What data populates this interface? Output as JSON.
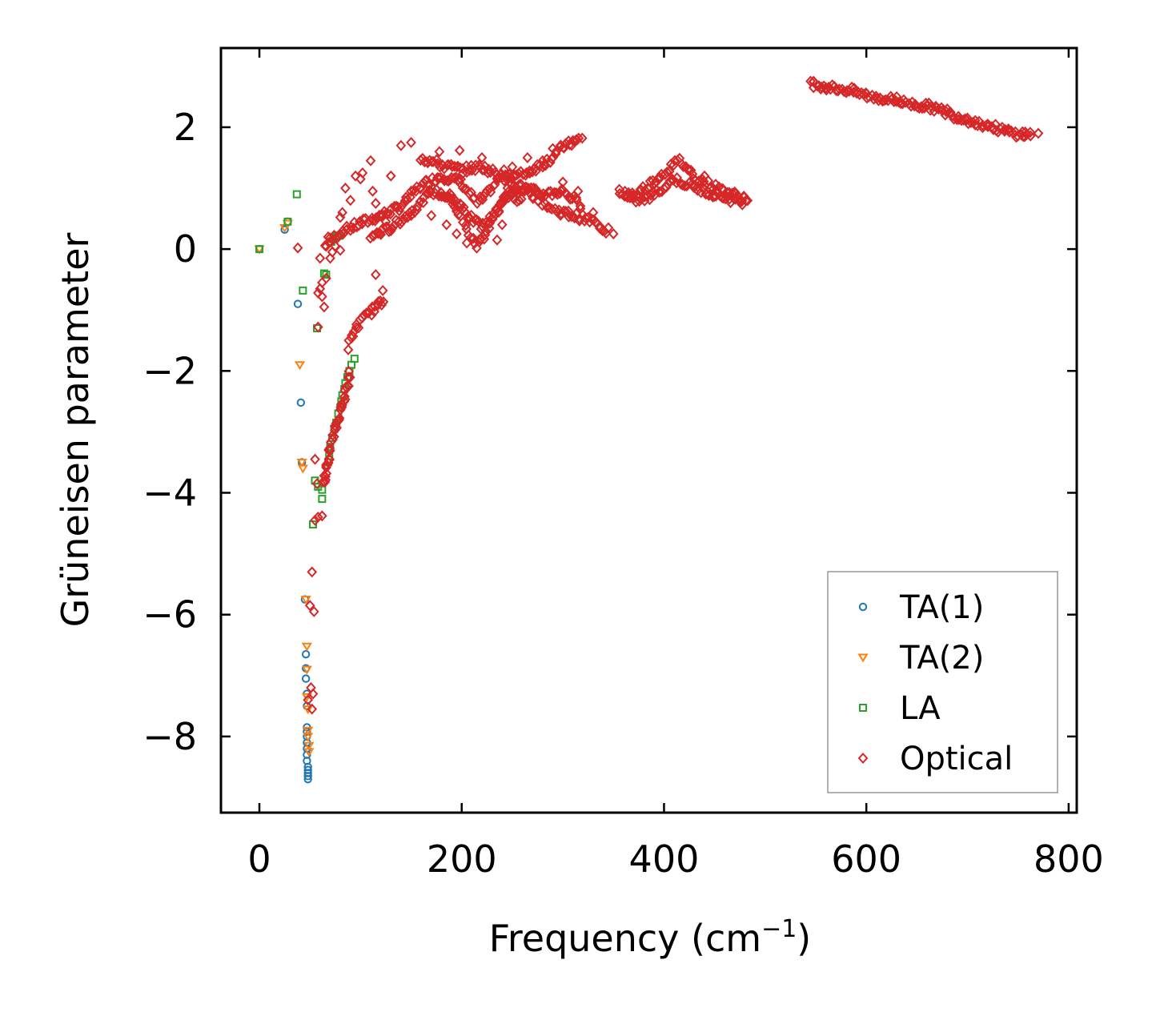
{
  "chart_data": {
    "type": "scatter",
    "title": "",
    "xlabel": "Frequency (cm",
    "xlabel_sup": "−1",
    "xlabel_end": ")",
    "ylabel": "Grüneisen parameter",
    "xlim": [
      -38,
      808
    ],
    "ylim": [
      -9.25,
      3.3
    ],
    "xticks": [
      0,
      200,
      400,
      600,
      800
    ],
    "xtick_labels": [
      "0",
      "200",
      "400",
      "600",
      "800"
    ],
    "yticks": [
      2,
      0,
      -2,
      -4,
      -6,
      -8
    ],
    "ytick_labels": [
      "2",
      "0",
      "−2",
      "−4",
      "−6",
      "−8"
    ],
    "grid": false,
    "legend_position": "bottom-right",
    "series": [
      {
        "name": "TA(1)",
        "marker": "circle",
        "color": "#1f77b4",
        "points": [
          [
            0,
            0
          ],
          [
            25,
            0.32
          ],
          [
            28,
            0.45
          ],
          [
            38,
            -0.9
          ],
          [
            41,
            -2.52
          ],
          [
            42,
            -3.5
          ],
          [
            45,
            -5.75
          ],
          [
            46,
            -6.65
          ],
          [
            46,
            -6.88
          ],
          [
            46,
            -7.05
          ],
          [
            47,
            -7.3
          ],
          [
            47,
            -7.5
          ],
          [
            47,
            -7.85
          ],
          [
            47,
            -7.92
          ],
          [
            47,
            -8.0
          ],
          [
            47,
            -8.1
          ],
          [
            47,
            -8.2
          ],
          [
            47,
            -8.3
          ],
          [
            47,
            -8.4
          ],
          [
            48,
            -8.5
          ],
          [
            48,
            -8.55
          ],
          [
            48,
            -8.6
          ],
          [
            48,
            -8.65
          ],
          [
            48,
            -8.7
          ]
        ]
      },
      {
        "name": "TA(2)",
        "marker": "triangle-down",
        "color": "#ff7f0e",
        "points": [
          [
            0,
            0
          ],
          [
            25,
            0.35
          ],
          [
            28,
            0.42
          ],
          [
            40,
            -1.9
          ],
          [
            42,
            -3.5
          ],
          [
            43,
            -3.6
          ],
          [
            46,
            -5.75
          ],
          [
            47,
            -6.52
          ],
          [
            47,
            -6.9
          ],
          [
            47,
            -7.35
          ],
          [
            48,
            -7.55
          ],
          [
            48,
            -7.9
          ],
          [
            48,
            -8.0
          ],
          [
            49,
            -8.15
          ],
          [
            49,
            -8.25
          ]
        ]
      },
      {
        "name": "LA",
        "marker": "square",
        "color": "#2ca02c",
        "points": [
          [
            0,
            0
          ],
          [
            28,
            0.45
          ],
          [
            37,
            0.9
          ],
          [
            43,
            -0.68
          ],
          [
            53,
            -4.52
          ],
          [
            55,
            -3.8
          ],
          [
            57,
            -1.3
          ],
          [
            58,
            -3.9
          ],
          [
            62,
            -4.1
          ],
          [
            62,
            -3.95
          ],
          [
            64,
            -0.4
          ],
          [
            66,
            -0.42
          ],
          [
            68,
            -3.5
          ],
          [
            69,
            -3.35
          ],
          [
            70,
            -3.25
          ],
          [
            71,
            0.12
          ],
          [
            72,
            -3.1
          ],
          [
            73,
            0.18
          ],
          [
            74,
            -2.95
          ],
          [
            75,
            0.2
          ],
          [
            76,
            -2.85
          ],
          [
            77,
            0.22
          ],
          [
            78,
            -2.7
          ],
          [
            79,
            0.22
          ],
          [
            80,
            -2.6
          ],
          [
            81,
            -2.5
          ],
          [
            82,
            -2.4
          ],
          [
            84,
            -2.3
          ],
          [
            85,
            -2.2
          ],
          [
            87,
            -2.1
          ],
          [
            89,
            -2.0
          ],
          [
            91,
            -1.9
          ],
          [
            94,
            -1.8
          ]
        ]
      },
      {
        "name": "Optical",
        "marker": "diamond",
        "color": "#d62728",
        "bands": [
          [
            [
              65,
              0.05
            ],
            [
              80,
              0.28
            ],
            [
              100,
              0.42
            ],
            [
              120,
              0.55
            ],
            [
              140,
              0.7
            ],
            [
              160,
              1.05
            ],
            [
              180,
              1.2
            ],
            [
              200,
              1.1
            ],
            [
              215,
              0.75
            ],
            [
              225,
              0.9
            ],
            [
              240,
              1.25
            ],
            [
              255,
              1.2
            ],
            [
              270,
              1.3
            ],
            [
              285,
              1.45
            ],
            [
              300,
              1.68
            ],
            [
              320,
              1.82
            ]
          ],
          [
            [
              110,
              0.2
            ],
            [
              130,
              0.35
            ],
            [
              150,
              0.6
            ],
            [
              170,
              0.95
            ],
            [
              190,
              0.85
            ],
            [
              205,
              0.3
            ],
            [
              215,
              0.05
            ],
            [
              225,
              0.3
            ],
            [
              240,
              0.8
            ],
            [
              260,
              1.0
            ],
            [
              275,
              0.85
            ],
            [
              290,
              0.65
            ],
            [
              310,
              0.55
            ],
            [
              330,
              0.45
            ],
            [
              345,
              0.28
            ]
          ],
          [
            [
              160,
              1.5
            ],
            [
              180,
              1.38
            ],
            [
              200,
              1.3
            ],
            [
              220,
              1.35
            ],
            [
              240,
              1.2
            ],
            [
              260,
              1.0
            ],
            [
              280,
              0.9
            ],
            [
              300,
              0.95
            ],
            [
              320,
              0.7
            ]
          ],
          [
            [
              185,
              0.9
            ],
            [
              200,
              0.72
            ],
            [
              210,
              0.5
            ],
            [
              220,
              0.35
            ],
            [
              232,
              0.55
            ],
            [
              245,
              0.95
            ],
            [
              260,
              0.75
            ]
          ],
          [
            [
              88,
              -1.6
            ],
            [
              95,
              -1.3
            ],
            [
              105,
              -1.1
            ],
            [
              115,
              -0.95
            ],
            [
              125,
              -0.85
            ]
          ],
          [
            [
              64,
              -3.8
            ],
            [
              66,
              -3.6
            ],
            [
              70,
              -3.3
            ],
            [
              74,
              -3.0
            ],
            [
              78,
              -2.8
            ],
            [
              82,
              -2.55
            ],
            [
              86,
              -2.3
            ],
            [
              90,
              -2.0
            ]
          ],
          [
            [
              355,
              0.95
            ],
            [
              370,
              0.88
            ],
            [
              385,
              1.05
            ],
            [
              400,
              1.25
            ],
            [
              415,
              1.45
            ],
            [
              430,
              1.2
            ],
            [
              445,
              1.05
            ],
            [
              460,
              0.95
            ],
            [
              475,
              0.85
            ],
            [
              485,
              0.82
            ]
          ],
          [
            [
              360,
              0.85
            ],
            [
              380,
              0.8
            ],
            [
              395,
              0.95
            ],
            [
              410,
              1.15
            ],
            [
              425,
              1.05
            ],
            [
              440,
              0.95
            ],
            [
              455,
              0.88
            ],
            [
              470,
              0.8
            ],
            [
              480,
              0.78
            ]
          ],
          [
            [
              545,
              2.72
            ],
            [
              565,
              2.65
            ],
            [
              585,
              2.6
            ],
            [
              605,
              2.5
            ],
            [
              625,
              2.45
            ],
            [
              645,
              2.38
            ],
            [
              665,
              2.33
            ],
            [
              685,
              2.2
            ],
            [
              705,
              2.1
            ],
            [
              725,
              2.0
            ],
            [
              745,
              1.9
            ],
            [
              765,
              1.88
            ]
          ]
        ],
        "points": [
          [
            38,
            0.02
          ],
          [
            60,
            -0.15
          ],
          [
            62,
            -0.55
          ],
          [
            62,
            -0.78
          ],
          [
            64,
            -0.95
          ],
          [
            70,
            -0.15
          ],
          [
            72,
            -0.05
          ],
          [
            75,
            0.05
          ],
          [
            80,
            -0.02
          ],
          [
            80,
            0.52
          ],
          [
            82,
            0.6
          ],
          [
            85,
            1.0
          ],
          [
            90,
            0.8
          ],
          [
            95,
            1.2
          ],
          [
            100,
            1.15
          ],
          [
            102,
            1.25
          ],
          [
            110,
            1.45
          ],
          [
            112,
            0.95
          ],
          [
            115,
            0.75
          ],
          [
            120,
            0.55
          ],
          [
            125,
            0.45
          ],
          [
            130,
            1.2
          ],
          [
            130,
            0.3
          ],
          [
            140,
            1.7
          ],
          [
            150,
            1.75
          ],
          [
            115,
            -0.42
          ],
          [
            122,
            -0.68
          ],
          [
            58,
            -1.28
          ],
          [
            55,
            -3.45
          ],
          [
            57,
            -3.85
          ],
          [
            64,
            -3.72
          ],
          [
            55,
            -4.45
          ],
          [
            58,
            -4.4
          ],
          [
            62,
            -4.38
          ],
          [
            52,
            -5.3
          ],
          [
            50,
            -5.85
          ],
          [
            54,
            -5.95
          ],
          [
            51,
            -7.2
          ],
          [
            53,
            -7.3
          ],
          [
            52,
            -7.55
          ],
          [
            48,
            -7.4
          ],
          [
            60,
            -0.65
          ],
          [
            58,
            -0.72
          ],
          [
            66,
            -0.48
          ],
          [
            68,
            0.2
          ],
          [
            178,
            1.6
          ],
          [
            198,
            1.62
          ],
          [
            220,
            1.5
          ],
          [
            280,
            1.45
          ],
          [
            300,
            1.1
          ],
          [
            315,
            0.95
          ],
          [
            330,
            0.6
          ],
          [
            170,
            0.55
          ],
          [
            185,
            0.4
          ],
          [
            195,
            0.25
          ],
          [
            205,
            0.1
          ],
          [
            235,
            0.15
          ],
          [
            240,
            0.4
          ],
          [
            250,
            1.35
          ],
          [
            265,
            1.5
          ],
          [
            290,
            1.65
          ],
          [
            310,
            1.78
          ],
          [
            345,
            0.35
          ],
          [
            350,
            0.25
          ],
          [
            440,
            1.2
          ],
          [
            548,
            2.75
          ],
          [
            600,
            2.55
          ],
          [
            630,
            2.5
          ],
          [
            660,
            2.35
          ],
          [
            680,
            2.3
          ],
          [
            700,
            2.15
          ],
          [
            720,
            2.05
          ],
          [
            740,
            1.95
          ],
          [
            755,
            1.85
          ],
          [
            770,
            1.9
          ]
        ]
      }
    ]
  }
}
